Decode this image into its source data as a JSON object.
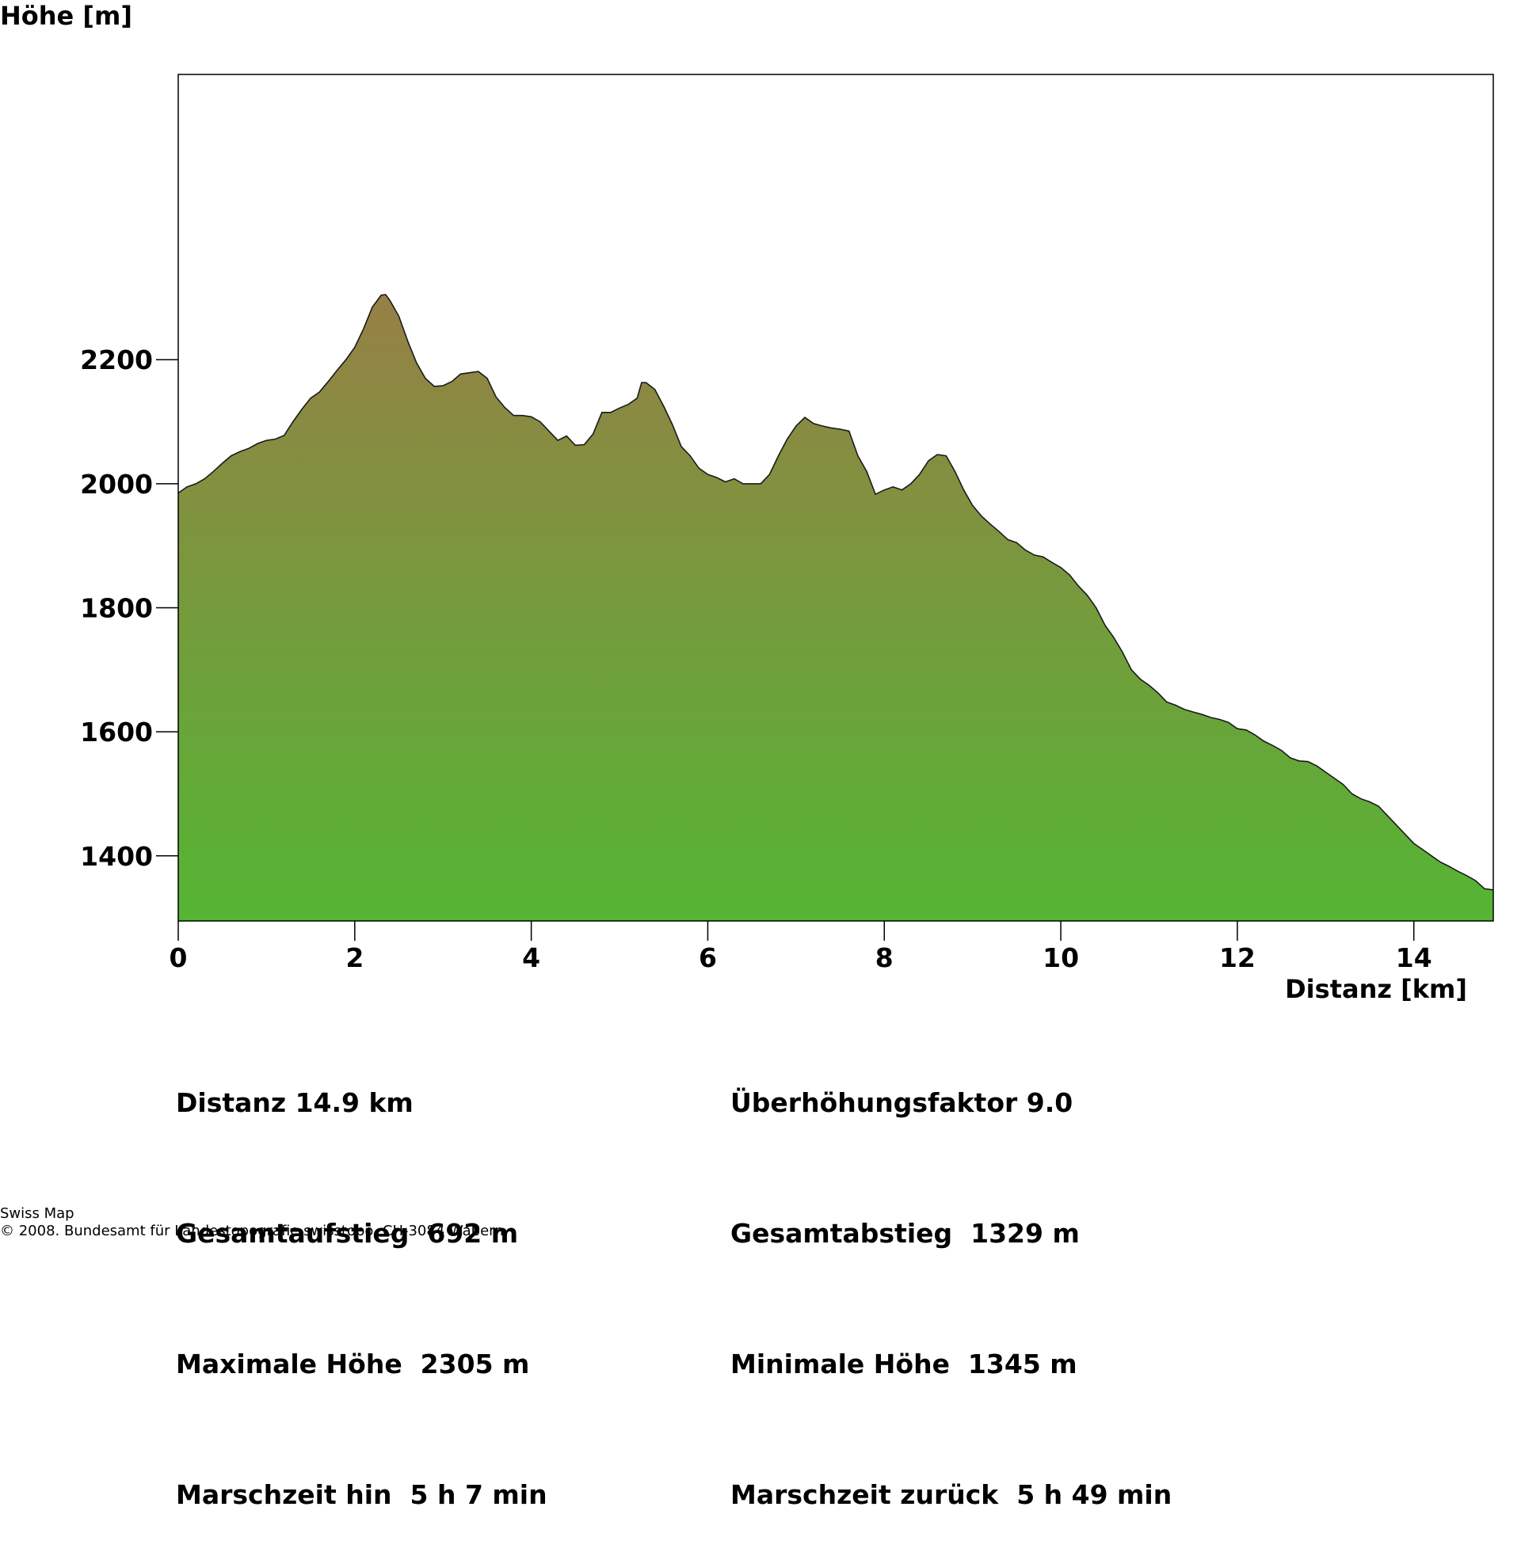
{
  "chart_data": {
    "type": "area",
    "ylabel": "Höhe [m]",
    "xlabel": "Distanz [km]",
    "xlim": [
      0,
      14.9
    ],
    "ylim": [
      1295,
      2660
    ],
    "x_ticks": [
      0,
      2,
      4,
      6,
      8,
      10,
      12,
      14
    ],
    "y_ticks": [
      1400,
      1600,
      1800,
      2000,
      2200
    ],
    "grid": false,
    "gradient_colors": {
      "high": "#a8714a",
      "low": "#55b534"
    },
    "points": [
      [
        0.0,
        1985
      ],
      [
        0.1,
        1995
      ],
      [
        0.2,
        2000
      ],
      [
        0.3,
        2008
      ],
      [
        0.4,
        2020
      ],
      [
        0.5,
        2033
      ],
      [
        0.6,
        2045
      ],
      [
        0.7,
        2052
      ],
      [
        0.8,
        2057
      ],
      [
        0.9,
        2065
      ],
      [
        1.0,
        2070
      ],
      [
        1.1,
        2072
      ],
      [
        1.2,
        2078
      ],
      [
        1.3,
        2100
      ],
      [
        1.4,
        2120
      ],
      [
        1.5,
        2138
      ],
      [
        1.6,
        2148
      ],
      [
        1.7,
        2165
      ],
      [
        1.8,
        2183
      ],
      [
        1.9,
        2200
      ],
      [
        2.0,
        2220
      ],
      [
        2.1,
        2250
      ],
      [
        2.2,
        2285
      ],
      [
        2.3,
        2304
      ],
      [
        2.35,
        2305
      ],
      [
        2.4,
        2295
      ],
      [
        2.5,
        2270
      ],
      [
        2.6,
        2230
      ],
      [
        2.7,
        2195
      ],
      [
        2.8,
        2170
      ],
      [
        2.9,
        2157
      ],
      [
        3.0,
        2158
      ],
      [
        3.1,
        2165
      ],
      [
        3.2,
        2177
      ],
      [
        3.3,
        2179
      ],
      [
        3.4,
        2181
      ],
      [
        3.5,
        2170
      ],
      [
        3.6,
        2140
      ],
      [
        3.7,
        2123
      ],
      [
        3.8,
        2110
      ],
      [
        3.9,
        2110
      ],
      [
        4.0,
        2108
      ],
      [
        4.1,
        2100
      ],
      [
        4.2,
        2085
      ],
      [
        4.3,
        2070
      ],
      [
        4.4,
        2077
      ],
      [
        4.5,
        2062
      ],
      [
        4.6,
        2063
      ],
      [
        4.7,
        2080
      ],
      [
        4.8,
        2115
      ],
      [
        4.9,
        2115
      ],
      [
        5.0,
        2122
      ],
      [
        5.1,
        2128
      ],
      [
        5.2,
        2138
      ],
      [
        5.25,
        2163
      ],
      [
        5.3,
        2163
      ],
      [
        5.4,
        2152
      ],
      [
        5.5,
        2125
      ],
      [
        5.6,
        2095
      ],
      [
        5.7,
        2060
      ],
      [
        5.8,
        2045
      ],
      [
        5.9,
        2025
      ],
      [
        6.0,
        2015
      ],
      [
        6.1,
        2010
      ],
      [
        6.2,
        2003
      ],
      [
        6.3,
        2008
      ],
      [
        6.4,
        2000
      ],
      [
        6.5,
        2000
      ],
      [
        6.6,
        2000
      ],
      [
        6.7,
        2015
      ],
      [
        6.8,
        2045
      ],
      [
        6.9,
        2072
      ],
      [
        7.0,
        2093
      ],
      [
        7.1,
        2107
      ],
      [
        7.2,
        2097
      ],
      [
        7.3,
        2093
      ],
      [
        7.4,
        2090
      ],
      [
        7.5,
        2088
      ],
      [
        7.6,
        2085
      ],
      [
        7.7,
        2045
      ],
      [
        7.8,
        2020
      ],
      [
        7.9,
        1983
      ],
      [
        8.0,
        1990
      ],
      [
        8.1,
        1995
      ],
      [
        8.2,
        1990
      ],
      [
        8.3,
        2000
      ],
      [
        8.4,
        2015
      ],
      [
        8.5,
        2037
      ],
      [
        8.6,
        2047
      ],
      [
        8.7,
        2045
      ],
      [
        8.8,
        2020
      ],
      [
        8.9,
        1990
      ],
      [
        9.0,
        1965
      ],
      [
        9.1,
        1948
      ],
      [
        9.2,
        1935
      ],
      [
        9.3,
        1923
      ],
      [
        9.4,
        1910
      ],
      [
        9.5,
        1905
      ],
      [
        9.6,
        1893
      ],
      [
        9.7,
        1885
      ],
      [
        9.8,
        1882
      ],
      [
        9.9,
        1873
      ],
      [
        10.0,
        1865
      ],
      [
        10.1,
        1853
      ],
      [
        10.2,
        1835
      ],
      [
        10.3,
        1820
      ],
      [
        10.4,
        1800
      ],
      [
        10.5,
        1772
      ],
      [
        10.6,
        1752
      ],
      [
        10.7,
        1728
      ],
      [
        10.8,
        1700
      ],
      [
        10.9,
        1685
      ],
      [
        11.0,
        1675
      ],
      [
        11.1,
        1663
      ],
      [
        11.2,
        1648
      ],
      [
        11.3,
        1643
      ],
      [
        11.4,
        1636
      ],
      [
        11.5,
        1632
      ],
      [
        11.6,
        1628
      ],
      [
        11.7,
        1623
      ],
      [
        11.8,
        1620
      ],
      [
        11.9,
        1615
      ],
      [
        12.0,
        1605
      ],
      [
        12.1,
        1603
      ],
      [
        12.2,
        1595
      ],
      [
        12.3,
        1585
      ],
      [
        12.4,
        1578
      ],
      [
        12.5,
        1570
      ],
      [
        12.6,
        1558
      ],
      [
        12.7,
        1553
      ],
      [
        12.8,
        1552
      ],
      [
        12.9,
        1545
      ],
      [
        13.0,
        1535
      ],
      [
        13.1,
        1525
      ],
      [
        13.2,
        1515
      ],
      [
        13.3,
        1500
      ],
      [
        13.4,
        1492
      ],
      [
        13.5,
        1487
      ],
      [
        13.6,
        1480
      ],
      [
        13.7,
        1465
      ],
      [
        13.8,
        1450
      ],
      [
        13.9,
        1435
      ],
      [
        14.0,
        1420
      ],
      [
        14.1,
        1410
      ],
      [
        14.2,
        1400
      ],
      [
        14.3,
        1390
      ],
      [
        14.4,
        1383
      ],
      [
        14.5,
        1375
      ],
      [
        14.6,
        1368
      ],
      [
        14.7,
        1360
      ],
      [
        14.8,
        1347
      ],
      [
        14.9,
        1345
      ]
    ]
  },
  "stats": {
    "left": [
      "Distanz 14.9 km",
      "Gesamtaufstieg  692 m",
      "Maximale Höhe  2305 m",
      "Marschzeit hin  5 h 7 min"
    ],
    "right": [
      "Überhöhungsfaktor 9.0",
      "Gesamtabstieg  1329 m",
      "Minimale Höhe  1345 m",
      "Marschzeit zurück  5 h 49 min"
    ]
  },
  "footer": {
    "line1": "Swiss Map",
    "line2": "© 2008. Bundesamt für Landestopografie swisstopo, CH-3084 Wabern"
  }
}
